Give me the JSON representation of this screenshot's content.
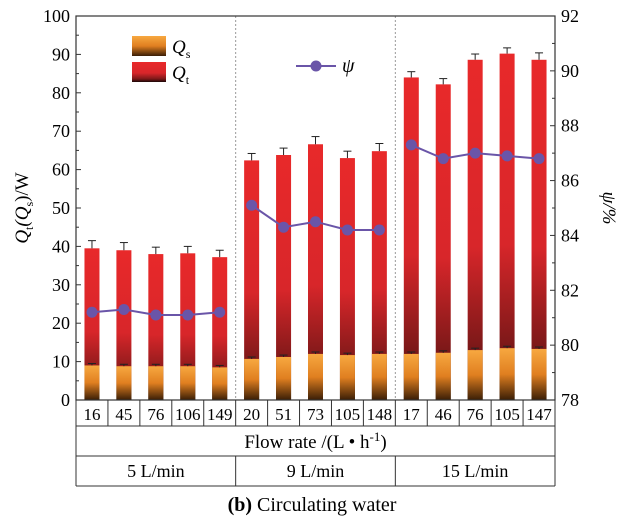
{
  "chart_data": {
    "type": "bar",
    "categories": [
      "16",
      "45",
      "76",
      "106",
      "149",
      "20",
      "51",
      "73",
      "105",
      "148",
      "17",
      "46",
      "76",
      "105",
      "147"
    ],
    "groups": [
      {
        "label": "5 L/min",
        "count": 5
      },
      {
        "label": "9 L/min",
        "count": 5
      },
      {
        "label": "15 L/min",
        "count": 5
      }
    ],
    "xlabel_prefix": "Flow rate /(L • h",
    "xlabel_sup": "-1",
    "xlabel_suffix": ")",
    "ylabel_left": "Q",
    "ylabel_left_sub1": "t",
    "ylabel_left_mid": "(Q",
    "ylabel_left_sub2": "s",
    "ylabel_left_end": ")/W",
    "ylabel_right": "ψ/%",
    "ylim_left": [
      0,
      100
    ],
    "ylim_right": [
      78,
      92
    ],
    "yticks_left": [
      0,
      10,
      20,
      30,
      40,
      50,
      60,
      70,
      80,
      90,
      100
    ],
    "yticks_right": [
      78,
      80,
      82,
      84,
      86,
      88,
      90,
      92
    ],
    "series": [
      {
        "name": "Q",
        "sub": "s",
        "axis": "left",
        "color": "#f0962a",
        "values": [
          9.0,
          8.8,
          8.8,
          8.8,
          8.5,
          10.7,
          11.2,
          12.0,
          11.7,
          12.0,
          12.0,
          12.3,
          13.0,
          13.5,
          13.3
        ],
        "errors": [
          0.5,
          0.5,
          0.5,
          0.5,
          0.5,
          0.5,
          0.5,
          0.5,
          0.5,
          0.5,
          0.5,
          0.5,
          0.5,
          0.5,
          0.5
        ]
      },
      {
        "name": "Q",
        "sub": "t",
        "axis": "left",
        "color": "#e8292a",
        "values": [
          39.5,
          39.0,
          38.0,
          38.2,
          37.2,
          62.4,
          63.8,
          66.6,
          63.0,
          64.8,
          84.0,
          82.2,
          88.6,
          90.2,
          88.6
        ],
        "errors": [
          2.0,
          2.0,
          1.8,
          1.8,
          1.8,
          1.8,
          1.8,
          2.0,
          1.8,
          2.0,
          1.5,
          1.5,
          1.5,
          1.5,
          1.8
        ]
      },
      {
        "name": "ψ",
        "axis": "right",
        "type": "line",
        "color": "#6a55a8",
        "segments": [
          {
            "values": [
              81.2,
              81.3,
              81.1,
              81.1,
              81.2
            ]
          },
          {
            "values": [
              85.1,
              84.3,
              84.5,
              84.2,
              84.2
            ]
          },
          {
            "values": [
              87.3,
              86.8,
              87.0,
              86.9,
              86.8
            ]
          }
        ]
      }
    ],
    "legend_bars": "top-left",
    "legend_line": "top-center"
  },
  "caption": {
    "label": "(b)",
    "text": " Circulating water"
  }
}
